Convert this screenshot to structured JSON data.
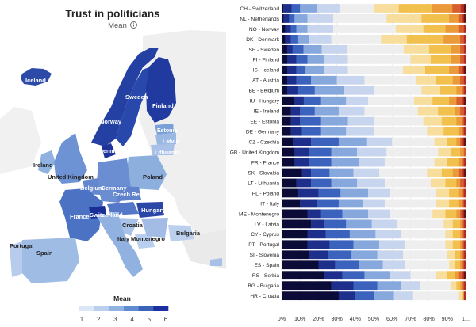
{
  "page": {
    "title": "Trust in politicians",
    "subtitle": "Mean",
    "info_icon": "info-circle-icon"
  },
  "map": {
    "legend": {
      "title": "Mean",
      "ticks": [
        "1",
        "2",
        "3",
        "4",
        "5",
        "6"
      ],
      "colors": [
        "#dbe7f7",
        "#bcd0ee",
        "#8fb2e0",
        "#5f8bd0",
        "#3a63b8",
        "#1c2f9e"
      ]
    },
    "labels": [
      {
        "key": "iceland",
        "text": "Iceland"
      },
      {
        "key": "norway",
        "text": "Norway"
      },
      {
        "key": "sweden",
        "text": "Sweden"
      },
      {
        "key": "finland",
        "text": "Finland"
      },
      {
        "key": "estonia",
        "text": "Estonia"
      },
      {
        "key": "latvia",
        "text": "Latvia"
      },
      {
        "key": "lithuania",
        "text": "Lithuania"
      },
      {
        "key": "denmark",
        "text": "Denmark"
      },
      {
        "key": "ireland",
        "text": "Ireland"
      },
      {
        "key": "uk",
        "text": "United Kingdom"
      },
      {
        "key": "poland",
        "text": "Poland"
      },
      {
        "key": "belgium",
        "text": "Belgium"
      },
      {
        "key": "germany",
        "text": "Germany"
      },
      {
        "key": "czech",
        "text": "Czech Republic"
      },
      {
        "key": "france",
        "text": "France"
      },
      {
        "key": "switzerland",
        "text": "Switzerland"
      },
      {
        "key": "hungary",
        "text": "Hungary"
      },
      {
        "key": "croatia",
        "text": "Croatia"
      },
      {
        "key": "italy",
        "text": "Italy"
      },
      {
        "key": "montenegro",
        "text": "Montenegro"
      },
      {
        "key": "bulgaria",
        "text": "Bulgaria"
      },
      {
        "key": "portugal",
        "text": "Portugal"
      },
      {
        "key": "spain",
        "text": "Spain"
      }
    ]
  },
  "chart_data": {
    "type": "bar",
    "orientation": "horizontal",
    "stacked": true,
    "normalized_percent": true,
    "categories": [
      "CH - Switzerland",
      "NL - Netherlands",
      "NO - Norway",
      "DK - Denmark",
      "SE - Sweden",
      "FI - Finland",
      "IS - Iceland",
      "AT - Austria",
      "BE - Belgium",
      "HU - Hungary",
      "IE - Ireland",
      "EE - Estonia",
      "DE - Germany",
      "CZ - Czechia",
      "GB - United Kingdom",
      "FR - France",
      "SK - Slovakia",
      "LT - Lithuania",
      "PL - Poland",
      "IT - Italy",
      "ME - Montenegro",
      "LV - Latvia",
      "CY - Cyprus",
      "PT - Portugal",
      "SI - Slovenia",
      "ES - Spain",
      "RS - Serbia",
      "BG - Bulgaria",
      "HR - Croatia"
    ],
    "segment_colors": [
      "#0b0b38",
      "#1d2f8a",
      "#3b63be",
      "#86a8dc",
      "#c8d5ee",
      "#eeeeef",
      "#f8de9c",
      "#f2c04c",
      "#eb9a3a",
      "#d85f2d",
      "#b52c23",
      "#6a1212"
    ],
    "values": [
      [
        1,
        5,
        5,
        10,
        14,
        20,
        15,
        20,
        12,
        5,
        2,
        1
      ],
      [
        1,
        3,
        3,
        7,
        14,
        29,
        19,
        15,
        5,
        2,
        1,
        1
      ],
      [
        2,
        3,
        3,
        6,
        14,
        34,
        15,
        12,
        7,
        3,
        1,
        0
      ],
      [
        2,
        3,
        4,
        6,
        12,
        27,
        14,
        20,
        9,
        2,
        1,
        0
      ],
      [
        3,
        3,
        6,
        10,
        14,
        31,
        14,
        12,
        5,
        2,
        1,
        0
      ],
      [
        3,
        5,
        6,
        9,
        13,
        34,
        11,
        11,
        5,
        2,
        1,
        0
      ],
      [
        3,
        5,
        5,
        10,
        13,
        30,
        12,
        13,
        5,
        2,
        1,
        1
      ],
      [
        3,
        5,
        8,
        14,
        15,
        28,
        11,
        9,
        4,
        2,
        1,
        0
      ],
      [
        3,
        6,
        9,
        16,
        16,
        26,
        10,
        9,
        3,
        1,
        1,
        0
      ],
      [
        7,
        5,
        9,
        14,
        12,
        25,
        10,
        9,
        4,
        3,
        1,
        1
      ],
      [
        5,
        5,
        8,
        13,
        14,
        29,
        11,
        9,
        3,
        2,
        1,
        0
      ],
      [
        5,
        5,
        11,
        15,
        14,
        27,
        10,
        8,
        3,
        1,
        1,
        0
      ],
      [
        5,
        6,
        10,
        14,
        15,
        29,
        9,
        8,
        2,
        1,
        1,
        0
      ],
      [
        6,
        10,
        15,
        15,
        14,
        23,
        7,
        5,
        2,
        1,
        1,
        1
      ],
      [
        7,
        8,
        12,
        14,
        16,
        28,
        7,
        5,
        2,
        1,
        0,
        0
      ],
      [
        7,
        8,
        12,
        15,
        14,
        27,
        7,
        6,
        2,
        1,
        1,
        0
      ],
      [
        11,
        5,
        10,
        13,
        14,
        26,
        8,
        6,
        3,
        2,
        1,
        1
      ],
      [
        8,
        8,
        11,
        14,
        15,
        25,
        8,
        6,
        2,
        2,
        1,
        0
      ],
      [
        9,
        11,
        12,
        15,
        12,
        25,
        7,
        5,
        2,
        1,
        1,
        0
      ],
      [
        10,
        9,
        12,
        13,
        12,
        28,
        7,
        5,
        2,
        1,
        1,
        0
      ],
      [
        14,
        7,
        12,
        14,
        12,
        23,
        7,
        6,
        2,
        1,
        1,
        1
      ],
      [
        16,
        7,
        12,
        14,
        14,
        25,
        5,
        4,
        1,
        1,
        1,
        0
      ],
      [
        14,
        10,
        13,
        14,
        14,
        24,
        4,
        4,
        1,
        1,
        1,
        0
      ],
      [
        14,
        12,
        13,
        14,
        14,
        22,
        4,
        4,
        1,
        1,
        1,
        0
      ],
      [
        15,
        10,
        13,
        14,
        14,
        24,
        4,
        3,
        1,
        1,
        1,
        0
      ],
      [
        20,
        9,
        13,
        13,
        12,
        24,
        3,
        3,
        1,
        1,
        1,
        0
      ],
      [
        23,
        10,
        12,
        14,
        11,
        14,
        6,
        4,
        2,
        2,
        1,
        1
      ],
      [
        27,
        12,
        13,
        13,
        10,
        17,
        3,
        2,
        1,
        1,
        1,
        0
      ],
      [
        31,
        9,
        10,
        11,
        10,
        25,
        2,
        1,
        0,
        0,
        1,
        0
      ]
    ],
    "xticks": [
      "0%",
      "10%",
      "20%",
      "30%",
      "40%",
      "50%",
      "60%",
      "70%",
      "80%",
      "90%",
      "1..."
    ],
    "xlim": [
      0,
      100
    ]
  }
}
